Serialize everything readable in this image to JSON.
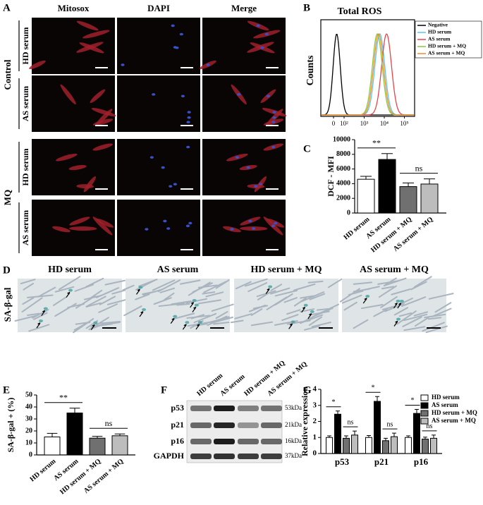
{
  "panel_labels": [
    "A",
    "B",
    "C",
    "D",
    "E",
    "F",
    "G"
  ],
  "panel_a": {
    "columns": [
      "Mitosox",
      "DAPI",
      "Merge"
    ],
    "groups": [
      {
        "name": "Control",
        "rows": [
          "HD serum",
          "AS serum"
        ]
      },
      {
        "name": "MQ",
        "rows": [
          "HD serum",
          "AS serum"
        ]
      }
    ]
  },
  "panel_b": {
    "title": "Total ROS",
    "ylabel": "Counts",
    "xticks": [
      {
        "value": 0,
        "label": "0"
      },
      {
        "value": 100,
        "label": "10²"
      },
      {
        "value": 1000,
        "label": "10³"
      },
      {
        "value": 10000,
        "label": "10⁴"
      },
      {
        "value": 100000,
        "label": "10⁵"
      }
    ],
    "series": [
      {
        "name": "Negative",
        "color": "#000000",
        "peak": 30
      },
      {
        "name": "HD serum",
        "color": "#5bc8e6",
        "peak": 6000
      },
      {
        "name": "AS serum",
        "color": "#e8434b",
        "peak": 13000
      },
      {
        "name": "HD serum + MQ",
        "color": "#8cc63f",
        "peak": 4500
      },
      {
        "name": "AS serum + MQ",
        "color": "#f08a2c",
        "peak": 5200
      }
    ]
  },
  "panel_d": {
    "ylabel": "SA-β-gal",
    "columns": [
      "HD serum",
      "AS serum",
      "HD serum + MQ",
      "AS serum + MQ"
    ]
  },
  "panel_f": {
    "columns": [
      "HD serum",
      "AS serum",
      "HD serum + MQ",
      "AS serum + MQ"
    ],
    "rows": [
      {
        "name": "p53",
        "size": "53kDa"
      },
      {
        "name": "p21",
        "size": "21kDa"
      },
      {
        "name": "p16",
        "size": "16kDa"
      },
      {
        "name": "GAPDH",
        "size": "37kDa"
      }
    ]
  },
  "chart_data": [
    {
      "type": "bar",
      "ylabel": "DCF - MFI",
      "categories": [
        "HD serum",
        "AS serum",
        "HD serum + MQ",
        "AS serum + MQ"
      ],
      "values": [
        4600,
        7300,
        3600,
        3950
      ],
      "errors": [
        400,
        800,
        500,
        700
      ],
      "colors": [
        "#ffffff",
        "#000000",
        "#707070",
        "#bdbdbd"
      ],
      "ylim": [
        0,
        10000
      ],
      "yticks": [
        0,
        2000,
        4000,
        6000,
        8000,
        10000
      ],
      "annotations": [
        "**",
        "ns"
      ]
    },
    {
      "type": "bar",
      "ylabel": "SA-β-gal + (%)",
      "categories": [
        "HD serum",
        "AS serum",
        "HD serum + MQ",
        "AS serum + MQ"
      ],
      "values": [
        15,
        35,
        14,
        16
      ],
      "errors": [
        3,
        4,
        1.5,
        1.5
      ],
      "colors": [
        "#ffffff",
        "#000000",
        "#707070",
        "#bdbdbd"
      ],
      "ylim": [
        0,
        50
      ],
      "yticks": [
        0,
        10,
        20,
        30,
        40,
        50
      ],
      "annotations": [
        "**",
        "ns"
      ]
    },
    {
      "type": "grouped_bar",
      "ylabel": "Relative  expression",
      "categories": [
        "p53",
        "p21",
        "p16"
      ],
      "series": [
        {
          "name": "HD serum",
          "color": "#ffffff",
          "values": [
            1.0,
            1.0,
            1.0
          ],
          "errors": [
            0.1,
            0.12,
            0.1
          ]
        },
        {
          "name": "AS serum",
          "color": "#000000",
          "values": [
            2.45,
            3.25,
            2.5
          ],
          "errors": [
            0.2,
            0.3,
            0.25
          ]
        },
        {
          "name": "HD serum + MQ",
          "color": "#707070",
          "values": [
            0.95,
            0.8,
            0.9
          ],
          "errors": [
            0.15,
            0.15,
            0.12
          ]
        },
        {
          "name": "AS serum + MQ",
          "color": "#bdbdbd",
          "values": [
            1.15,
            1.05,
            0.95
          ],
          "errors": [
            0.25,
            0.22,
            0.2
          ]
        }
      ],
      "ylim": [
        0,
        4
      ],
      "yticks": [
        0,
        1,
        2,
        3,
        4
      ],
      "annotations": [
        [
          "*",
          "ns"
        ],
        [
          "*",
          "ns"
        ],
        [
          "*",
          "ns"
        ]
      ]
    }
  ]
}
